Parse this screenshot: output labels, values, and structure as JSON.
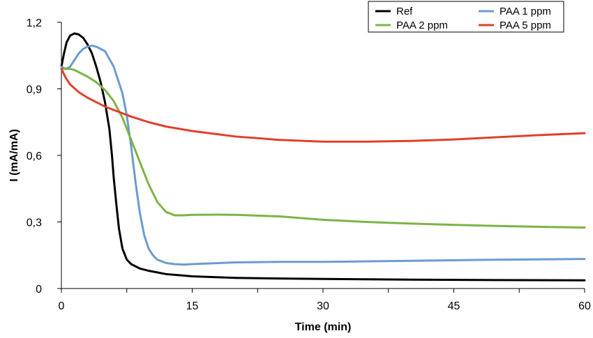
{
  "chart_data": {
    "type": "line",
    "title": "",
    "xlabel": "Time (min)",
    "ylabel": "I (mA/mA)",
    "xlim": [
      0,
      60
    ],
    "ylim": [
      0,
      1.2
    ],
    "xticks": [
      0,
      15,
      30,
      45,
      60
    ],
    "xtick_labels": [
      "0",
      "15",
      "30",
      "45",
      "60"
    ],
    "yticks": [
      0,
      0.3,
      0.6,
      0.9,
      1.2
    ],
    "ytick_labels": [
      "0",
      "0,3",
      "0,6",
      "0,9",
      "1,2"
    ],
    "grid": false,
    "legend_position": "top-right",
    "series": [
      {
        "name": "Ref",
        "color": "#000000",
        "points": [
          [
            0,
            1.0
          ],
          [
            0.3,
            1.06
          ],
          [
            0.6,
            1.11
          ],
          [
            1.0,
            1.14
          ],
          [
            1.5,
            1.15
          ],
          [
            2.0,
            1.145
          ],
          [
            2.5,
            1.13
          ],
          [
            3.0,
            1.1
          ],
          [
            3.5,
            1.06
          ],
          [
            4.0,
            1.0
          ],
          [
            4.5,
            0.93
          ],
          [
            5.0,
            0.84
          ],
          [
            5.5,
            0.72
          ],
          [
            5.8,
            0.6
          ],
          [
            6.0,
            0.5
          ],
          [
            6.3,
            0.38
          ],
          [
            6.6,
            0.27
          ],
          [
            7.0,
            0.18
          ],
          [
            7.5,
            0.13
          ],
          [
            8.0,
            0.11
          ],
          [
            9.0,
            0.09
          ],
          [
            10.0,
            0.08
          ],
          [
            12.0,
            0.065
          ],
          [
            15.0,
            0.055
          ],
          [
            20.0,
            0.048
          ],
          [
            25.0,
            0.045
          ],
          [
            30.0,
            0.043
          ],
          [
            40.0,
            0.04
          ],
          [
            50.0,
            0.038
          ],
          [
            60.0,
            0.037
          ]
        ]
      },
      {
        "name": "PAA 1 ppm",
        "color": "#6b9bd1",
        "points": [
          [
            0,
            1.0
          ],
          [
            0.5,
            0.99
          ],
          [
            1.0,
            1.0
          ],
          [
            1.5,
            1.03
          ],
          [
            2.0,
            1.06
          ],
          [
            2.5,
            1.08
          ],
          [
            3.0,
            1.09
          ],
          [
            3.5,
            1.095
          ],
          [
            4.0,
            1.09
          ],
          [
            5.0,
            1.07
          ],
          [
            6.0,
            1.0
          ],
          [
            7.0,
            0.88
          ],
          [
            7.5,
            0.78
          ],
          [
            8.0,
            0.64
          ],
          [
            8.5,
            0.48
          ],
          [
            9.0,
            0.34
          ],
          [
            9.5,
            0.24
          ],
          [
            10.0,
            0.18
          ],
          [
            10.5,
            0.15
          ],
          [
            11.0,
            0.13
          ],
          [
            12.0,
            0.115
          ],
          [
            13.0,
            0.11
          ],
          [
            14.0,
            0.108
          ],
          [
            15.0,
            0.11
          ],
          [
            20.0,
            0.118
          ],
          [
            25.0,
            0.12
          ],
          [
            30.0,
            0.12
          ],
          [
            40.0,
            0.125
          ],
          [
            50.0,
            0.13
          ],
          [
            60.0,
            0.133
          ]
        ]
      },
      {
        "name": "PAA 2 ppm",
        "color": "#7db347",
        "points": [
          [
            0,
            0.99
          ],
          [
            0.5,
            0.99
          ],
          [
            1.0,
            0.99
          ],
          [
            1.5,
            0.985
          ],
          [
            2.0,
            0.975
          ],
          [
            3.0,
            0.955
          ],
          [
            4.0,
            0.93
          ],
          [
            5.0,
            0.895
          ],
          [
            6.0,
            0.845
          ],
          [
            7.0,
            0.77
          ],
          [
            8.0,
            0.67
          ],
          [
            9.0,
            0.57
          ],
          [
            10.0,
            0.47
          ],
          [
            11.0,
            0.39
          ],
          [
            12.0,
            0.345
          ],
          [
            13.0,
            0.33
          ],
          [
            14.0,
            0.33
          ],
          [
            15.0,
            0.332
          ],
          [
            18.0,
            0.333
          ],
          [
            20.0,
            0.332
          ],
          [
            25.0,
            0.325
          ],
          [
            30.0,
            0.31
          ],
          [
            35.0,
            0.3
          ],
          [
            40.0,
            0.293
          ],
          [
            45.0,
            0.287
          ],
          [
            50.0,
            0.282
          ],
          [
            55.0,
            0.278
          ],
          [
            60.0,
            0.275
          ]
        ]
      },
      {
        "name": "PAA 5 ppm",
        "color": "#e0402b",
        "points": [
          [
            0,
            0.99
          ],
          [
            0.5,
            0.95
          ],
          [
            1.0,
            0.92
          ],
          [
            2.0,
            0.885
          ],
          [
            3.0,
            0.86
          ],
          [
            4.0,
            0.84
          ],
          [
            5.0,
            0.82
          ],
          [
            6.0,
            0.805
          ],
          [
            7.0,
            0.79
          ],
          [
            8.0,
            0.775
          ],
          [
            10.0,
            0.75
          ],
          [
            12.0,
            0.73
          ],
          [
            15.0,
            0.71
          ],
          [
            18.0,
            0.695
          ],
          [
            20.0,
            0.685
          ],
          [
            25.0,
            0.67
          ],
          [
            30.0,
            0.662
          ],
          [
            35.0,
            0.662
          ],
          [
            40.0,
            0.665
          ],
          [
            45.0,
            0.672
          ],
          [
            50.0,
            0.682
          ],
          [
            55.0,
            0.692
          ],
          [
            60.0,
            0.7
          ]
        ]
      }
    ]
  }
}
